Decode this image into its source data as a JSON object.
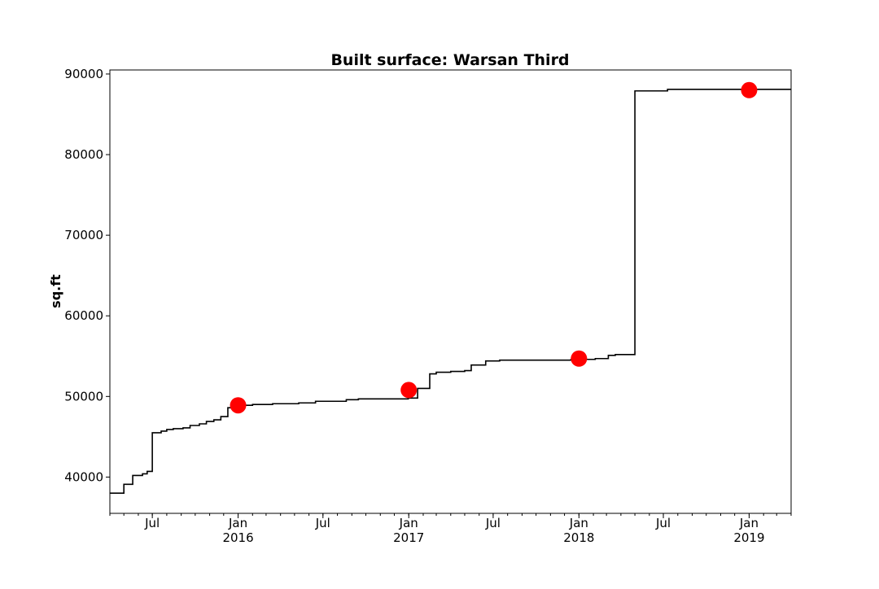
{
  "chart_data": {
    "type": "line",
    "title": "Built surface: Warsan Third",
    "xlabel": "",
    "ylabel": "sq.ft",
    "xlim": [
      "2015-04-01",
      "2019-04-01"
    ],
    "ylim": [
      35500,
      90500
    ],
    "grid": false,
    "y_ticks": [
      40000,
      50000,
      60000,
      70000,
      80000,
      90000
    ],
    "x_ticks": [
      {
        "date": "2015-07-01",
        "label": "Jul",
        "year": ""
      },
      {
        "date": "2016-01-01",
        "label": "Jan",
        "year": "2016"
      },
      {
        "date": "2016-07-01",
        "label": "Jul",
        "year": ""
      },
      {
        "date": "2017-01-01",
        "label": "Jan",
        "year": "2017"
      },
      {
        "date": "2017-07-01",
        "label": "Jul",
        "year": ""
      },
      {
        "date": "2018-01-01",
        "label": "Jan",
        "year": "2018"
      },
      {
        "date": "2018-07-01",
        "label": "Jul",
        "year": ""
      },
      {
        "date": "2019-01-01",
        "label": "Jan",
        "year": "2019"
      }
    ],
    "series": [
      {
        "kind": "step",
        "color": "#000000",
        "points": [
          [
            "2015-04-01",
            38000
          ],
          [
            "2015-05-01",
            39100
          ],
          [
            "2015-05-20",
            40200
          ],
          [
            "2015-06-10",
            40400
          ],
          [
            "2015-06-20",
            40700
          ],
          [
            "2015-07-01",
            45500
          ],
          [
            "2015-07-20",
            45700
          ],
          [
            "2015-08-01",
            45900
          ],
          [
            "2015-08-15",
            46000
          ],
          [
            "2015-09-05",
            46100
          ],
          [
            "2015-09-20",
            46400
          ],
          [
            "2015-10-10",
            46600
          ],
          [
            "2015-10-25",
            46900
          ],
          [
            "2015-11-10",
            47100
          ],
          [
            "2015-11-25",
            47500
          ],
          [
            "2015-12-10",
            48600
          ],
          [
            "2015-12-25",
            48900
          ],
          [
            "2016-02-01",
            49000
          ],
          [
            "2016-03-15",
            49100
          ],
          [
            "2016-05-10",
            49200
          ],
          [
            "2016-06-15",
            49400
          ],
          [
            "2016-08-20",
            49600
          ],
          [
            "2016-09-15",
            49700
          ],
          [
            "2016-12-31",
            49800
          ],
          [
            "2017-01-20",
            51000
          ],
          [
            "2017-02-15",
            52800
          ],
          [
            "2017-03-01",
            53000
          ],
          [
            "2017-04-01",
            53100
          ],
          [
            "2017-05-01",
            53200
          ],
          [
            "2017-05-15",
            53900
          ],
          [
            "2017-06-15",
            54400
          ],
          [
            "2017-07-15",
            54500
          ],
          [
            "2017-09-01",
            54500
          ],
          [
            "2017-12-15",
            54600
          ],
          [
            "2018-02-05",
            54700
          ],
          [
            "2018-03-05",
            55100
          ],
          [
            "2018-03-20",
            55200
          ],
          [
            "2018-05-01",
            87900
          ],
          [
            "2018-06-15",
            87900
          ],
          [
            "2018-07-10",
            88100
          ],
          [
            "2019-04-01",
            88100
          ]
        ]
      }
    ],
    "markers": [
      {
        "date": "2016-01-01",
        "value": 48900,
        "color": "#ff0000"
      },
      {
        "date": "2017-01-01",
        "value": 50800,
        "color": "#ff0000"
      },
      {
        "date": "2018-01-01",
        "value": 54700,
        "color": "#ff0000"
      },
      {
        "date": "2019-01-01",
        "value": 88000,
        "color": "#ff0000"
      }
    ]
  }
}
